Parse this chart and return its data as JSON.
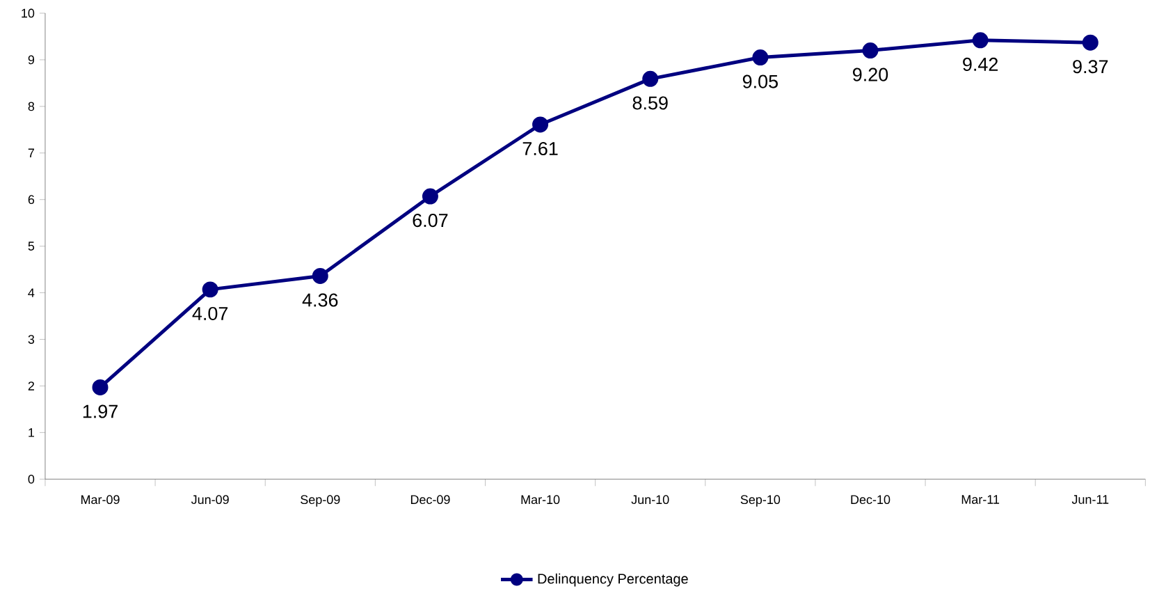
{
  "chart_data": {
    "type": "line",
    "categories": [
      "Mar-09",
      "Jun-09",
      "Sep-09",
      "Dec-09",
      "Mar-10",
      "Jun-10",
      "Sep-10",
      "Dec-10",
      "Mar-11",
      "Jun-11"
    ],
    "series": [
      {
        "name": "Delinquency Percentage",
        "color": "#000080",
        "values": [
          1.97,
          4.07,
          4.36,
          6.07,
          7.61,
          8.59,
          9.05,
          9.2,
          9.42,
          9.37
        ],
        "value_labels": [
          "1.97",
          "4.07",
          "4.36",
          "6.07",
          "7.61",
          "8.59",
          "9.05",
          "9.20",
          "9.42",
          "9.37"
        ]
      }
    ],
    "ylim": [
      0,
      10
    ],
    "yticks": [
      0,
      1,
      2,
      3,
      4,
      5,
      6,
      7,
      8,
      9,
      10
    ],
    "grid": false,
    "legend": "bottom",
    "marker": "circle",
    "line_style": "solid"
  }
}
